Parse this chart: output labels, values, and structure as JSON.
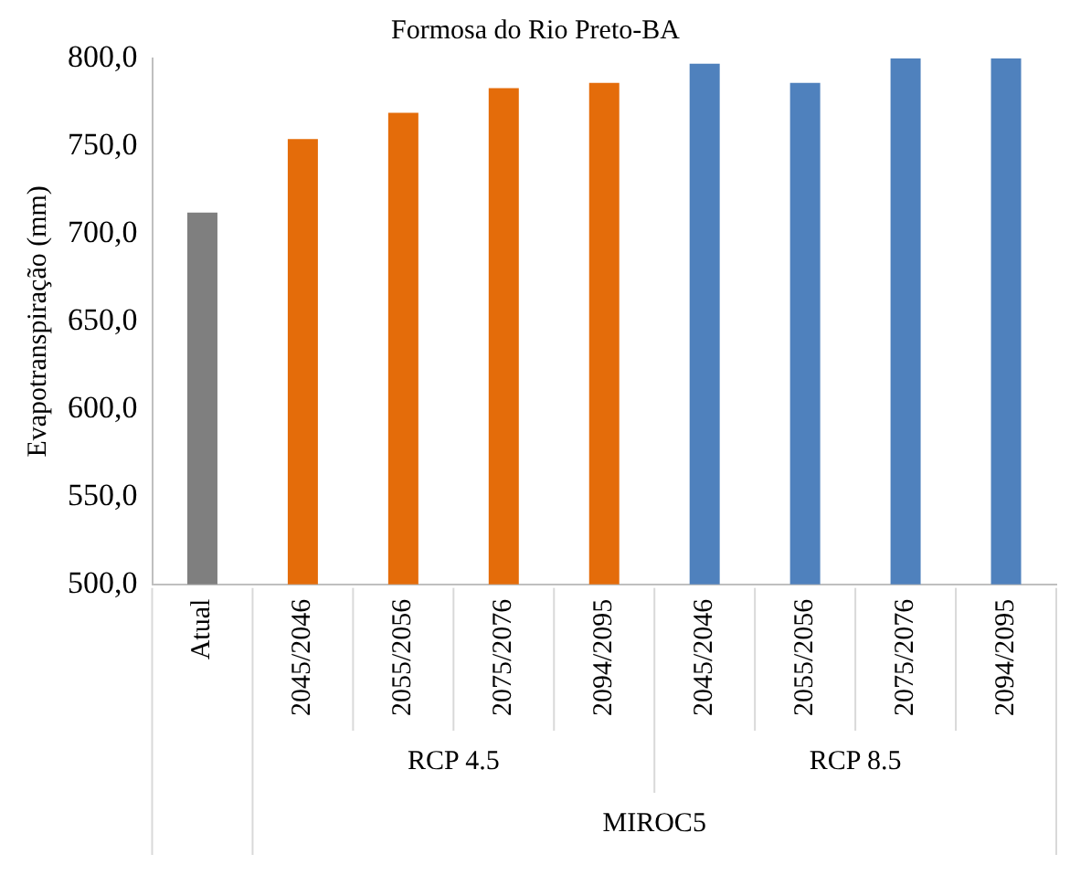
{
  "chart_data": {
    "type": "bar",
    "title": "Formosa do Rio Preto-BA",
    "ylabel": "Evapotranspiração (mm)",
    "categories": [
      "Atual",
      "2045/2046",
      "2055/2056",
      "2075/2076",
      "2094/2095",
      "2045/2046",
      "2055/2056",
      "2075/2076",
      "2094/2095"
    ],
    "values": [
      712,
      754,
      769,
      783,
      786,
      797,
      786,
      800,
      800
    ],
    "colors": [
      "#7f7f7f",
      "#e46c0a",
      "#e46c0a",
      "#e46c0a",
      "#e46c0a",
      "#4f81bd",
      "#4f81bd",
      "#4f81bd",
      "#4f81bd"
    ],
    "ylim": [
      500,
      800
    ],
    "yticks": [
      {
        "value": 500,
        "label": "500,0"
      },
      {
        "value": 550,
        "label": "550,0"
      },
      {
        "value": 600,
        "label": "600,0"
      },
      {
        "value": 650,
        "label": "650,0"
      },
      {
        "value": 700,
        "label": "700,0"
      },
      {
        "value": 750,
        "label": "750,0"
      },
      {
        "value": 800,
        "label": "800,0"
      }
    ],
    "annotations": [
      "RCP 4.5",
      "RCP 8.5",
      "MIROC5"
    ],
    "grid": false,
    "legend": false
  }
}
